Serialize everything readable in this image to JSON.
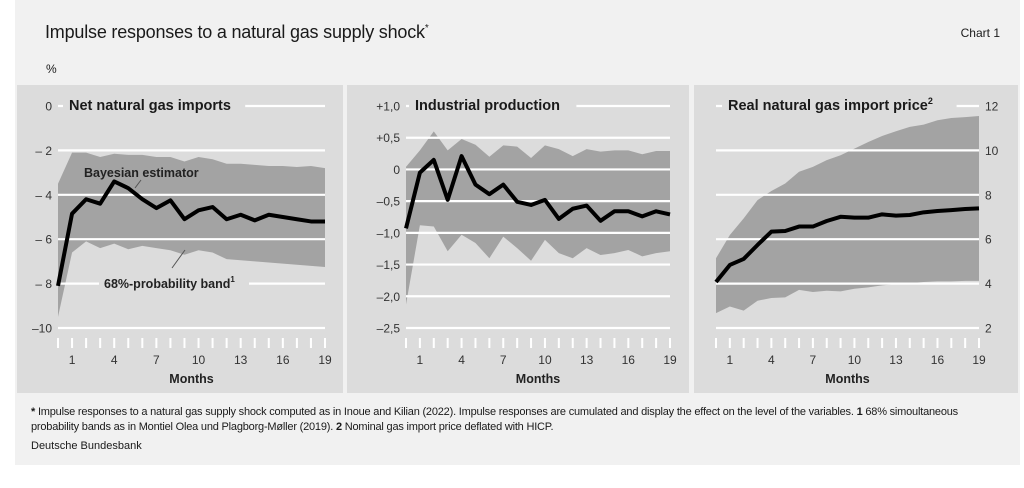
{
  "header": {
    "title": "Impulse responses to a natural gas supply shock",
    "title_mark": "*",
    "chart_number": "Chart 1",
    "unit": "%"
  },
  "footnote": {
    "star": "*",
    "star_text": " Impulse responses to a natural gas supply shock computed as in Inoue and Kilian (2022). Impulse responses are cumulated and display the effect on the level of the variables.",
    "n1": "1",
    "n1_text": " 68% simoultaneous probability bands as in Montiel Olea und Plagborg-Møller (2019).",
    "n2": "2",
    "n2_text": " Nominal gas import price deflated with HICP.",
    "source": "Deutsche Bundesbank"
  },
  "colors": {
    "panel": "#dcdcdc",
    "band": "#a3a3a3",
    "line": "#000000",
    "grid": "#ffffff"
  },
  "chart_data": [
    {
      "type": "line",
      "title": "Net natural gas imports",
      "xlabel": "Months",
      "ylim": [
        -10,
        0
      ],
      "y_axis_side": "left",
      "y_ticks": [
        0,
        -2,
        -4,
        -6,
        -8,
        -10
      ],
      "y_tick_labels": [
        "0",
        "– 2",
        "– 4",
        "– 6",
        "– 8",
        "–10"
      ],
      "x_tick_labels": [
        "1",
        "4",
        "7",
        "10",
        "13",
        "16",
        "19"
      ],
      "x_tick_values": [
        1,
        4,
        7,
        10,
        13,
        16,
        19
      ],
      "grid": true,
      "annotations": [
        "Bayesian estimator",
        "68%-probability band",
        "1"
      ],
      "x": [
        0,
        1,
        2,
        3,
        4,
        5,
        6,
        7,
        8,
        9,
        10,
        11,
        12,
        13,
        14,
        15,
        16,
        17,
        18,
        19
      ],
      "series": [
        {
          "name": "Bayesian estimator",
          "values": [
            -8.1,
            -4.85,
            -4.2,
            -4.4,
            -3.4,
            -3.7,
            -4.2,
            -4.6,
            -4.25,
            -5.1,
            -4.7,
            -4.55,
            -5.1,
            -4.9,
            -5.15,
            -4.9,
            -5.0,
            -5.1,
            -5.2,
            -5.2
          ]
        },
        {
          "name": "68%-probability band",
          "upper": [
            -3.5,
            -2.1,
            -2.1,
            -2.3,
            -2.15,
            -2.2,
            -2.2,
            -2.3,
            -2.3,
            -2.5,
            -2.3,
            -2.4,
            -2.6,
            -2.6,
            -2.65,
            -2.7,
            -2.7,
            -2.75,
            -2.7,
            -2.8
          ],
          "lower": [
            -9.5,
            -6.6,
            -6.1,
            -6.4,
            -6.2,
            -6.45,
            -6.3,
            -6.4,
            -6.5,
            -6.7,
            -6.5,
            -6.6,
            -6.9,
            -6.95,
            -7.0,
            -7.05,
            -7.1,
            -7.15,
            -7.2,
            -7.25
          ]
        }
      ]
    },
    {
      "type": "line",
      "title": "Industrial production",
      "xlabel": "Months",
      "ylim": [
        -2.5,
        1.0
      ],
      "y_axis_side": "left",
      "y_ticks": [
        1.0,
        0.5,
        0,
        -0.5,
        -1.0,
        -1.5,
        -2.0,
        -2.5
      ],
      "y_tick_labels": [
        "+1,0",
        "+0,5",
        "0",
        "–0,5",
        "–1,0",
        "–1,5",
        "–2,0",
        "–2,5"
      ],
      "x_tick_labels": [
        "1",
        "4",
        "7",
        "10",
        "13",
        "16",
        "19"
      ],
      "x_tick_values": [
        1,
        4,
        7,
        10,
        13,
        16,
        19
      ],
      "grid": true,
      "x": [
        0,
        1,
        2,
        3,
        4,
        5,
        6,
        7,
        8,
        9,
        10,
        11,
        12,
        13,
        14,
        15,
        16,
        17,
        18,
        19
      ],
      "series": [
        {
          "name": "Bayesian estimator",
          "values": [
            -0.93,
            -0.05,
            0.15,
            -0.48,
            0.21,
            -0.24,
            -0.39,
            -0.24,
            -0.51,
            -0.56,
            -0.48,
            -0.78,
            -0.62,
            -0.57,
            -0.81,
            -0.66,
            -0.66,
            -0.74,
            -0.66,
            -0.71
          ]
        },
        {
          "name": "68%-probability band",
          "upper": [
            0.04,
            0.3,
            0.6,
            0.3,
            0.48,
            0.39,
            0.2,
            0.38,
            0.36,
            0.18,
            0.38,
            0.32,
            0.21,
            0.32,
            0.28,
            0.3,
            0.3,
            0.24,
            0.29,
            0.29
          ],
          "lower": [
            -2.13,
            -0.88,
            -0.9,
            -1.29,
            -1.03,
            -1.16,
            -1.4,
            -1.06,
            -1.24,
            -1.44,
            -1.11,
            -1.32,
            -1.4,
            -1.24,
            -1.35,
            -1.32,
            -1.27,
            -1.37,
            -1.32,
            -1.29
          ]
        }
      ]
    },
    {
      "type": "line",
      "title": "Real natural gas import price",
      "title_mark": "2",
      "xlabel": "Months",
      "ylim": [
        2,
        12
      ],
      "y_axis_side": "right",
      "y_ticks": [
        12,
        10,
        8,
        6,
        4,
        2
      ],
      "y_tick_labels": [
        "12",
        "10",
        "8",
        "6",
        "4",
        "2"
      ],
      "x_tick_labels": [
        "1",
        "4",
        "7",
        "10",
        "13",
        "16",
        "19"
      ],
      "x_tick_values": [
        1,
        4,
        7,
        10,
        13,
        16,
        19
      ],
      "grid": true,
      "x": [
        0,
        1,
        2,
        3,
        4,
        5,
        6,
        7,
        8,
        9,
        10,
        11,
        12,
        13,
        14,
        15,
        16,
        17,
        18,
        19
      ],
      "series": [
        {
          "name": "Bayesian estimator",
          "values": [
            4.07,
            4.84,
            5.11,
            5.74,
            6.34,
            6.37,
            6.57,
            6.57,
            6.82,
            7.01,
            6.97,
            6.97,
            7.12,
            7.06,
            7.09,
            7.21,
            7.27,
            7.31,
            7.36,
            7.39
          ]
        },
        {
          "name": "68%-probability band",
          "upper": [
            5.14,
            6.19,
            6.94,
            7.76,
            8.17,
            8.51,
            9.04,
            9.26,
            9.56,
            9.78,
            10.08,
            10.38,
            10.65,
            10.86,
            11.06,
            11.16,
            11.36,
            11.46,
            11.5,
            11.55
          ],
          "lower": [
            2.67,
            2.97,
            2.78,
            3.23,
            3.35,
            3.38,
            3.72,
            3.62,
            3.68,
            3.65,
            3.77,
            3.83,
            3.92,
            3.98,
            4.02,
            4.07,
            4.1,
            4.1,
            4.12,
            4.12
          ]
        }
      ]
    }
  ]
}
